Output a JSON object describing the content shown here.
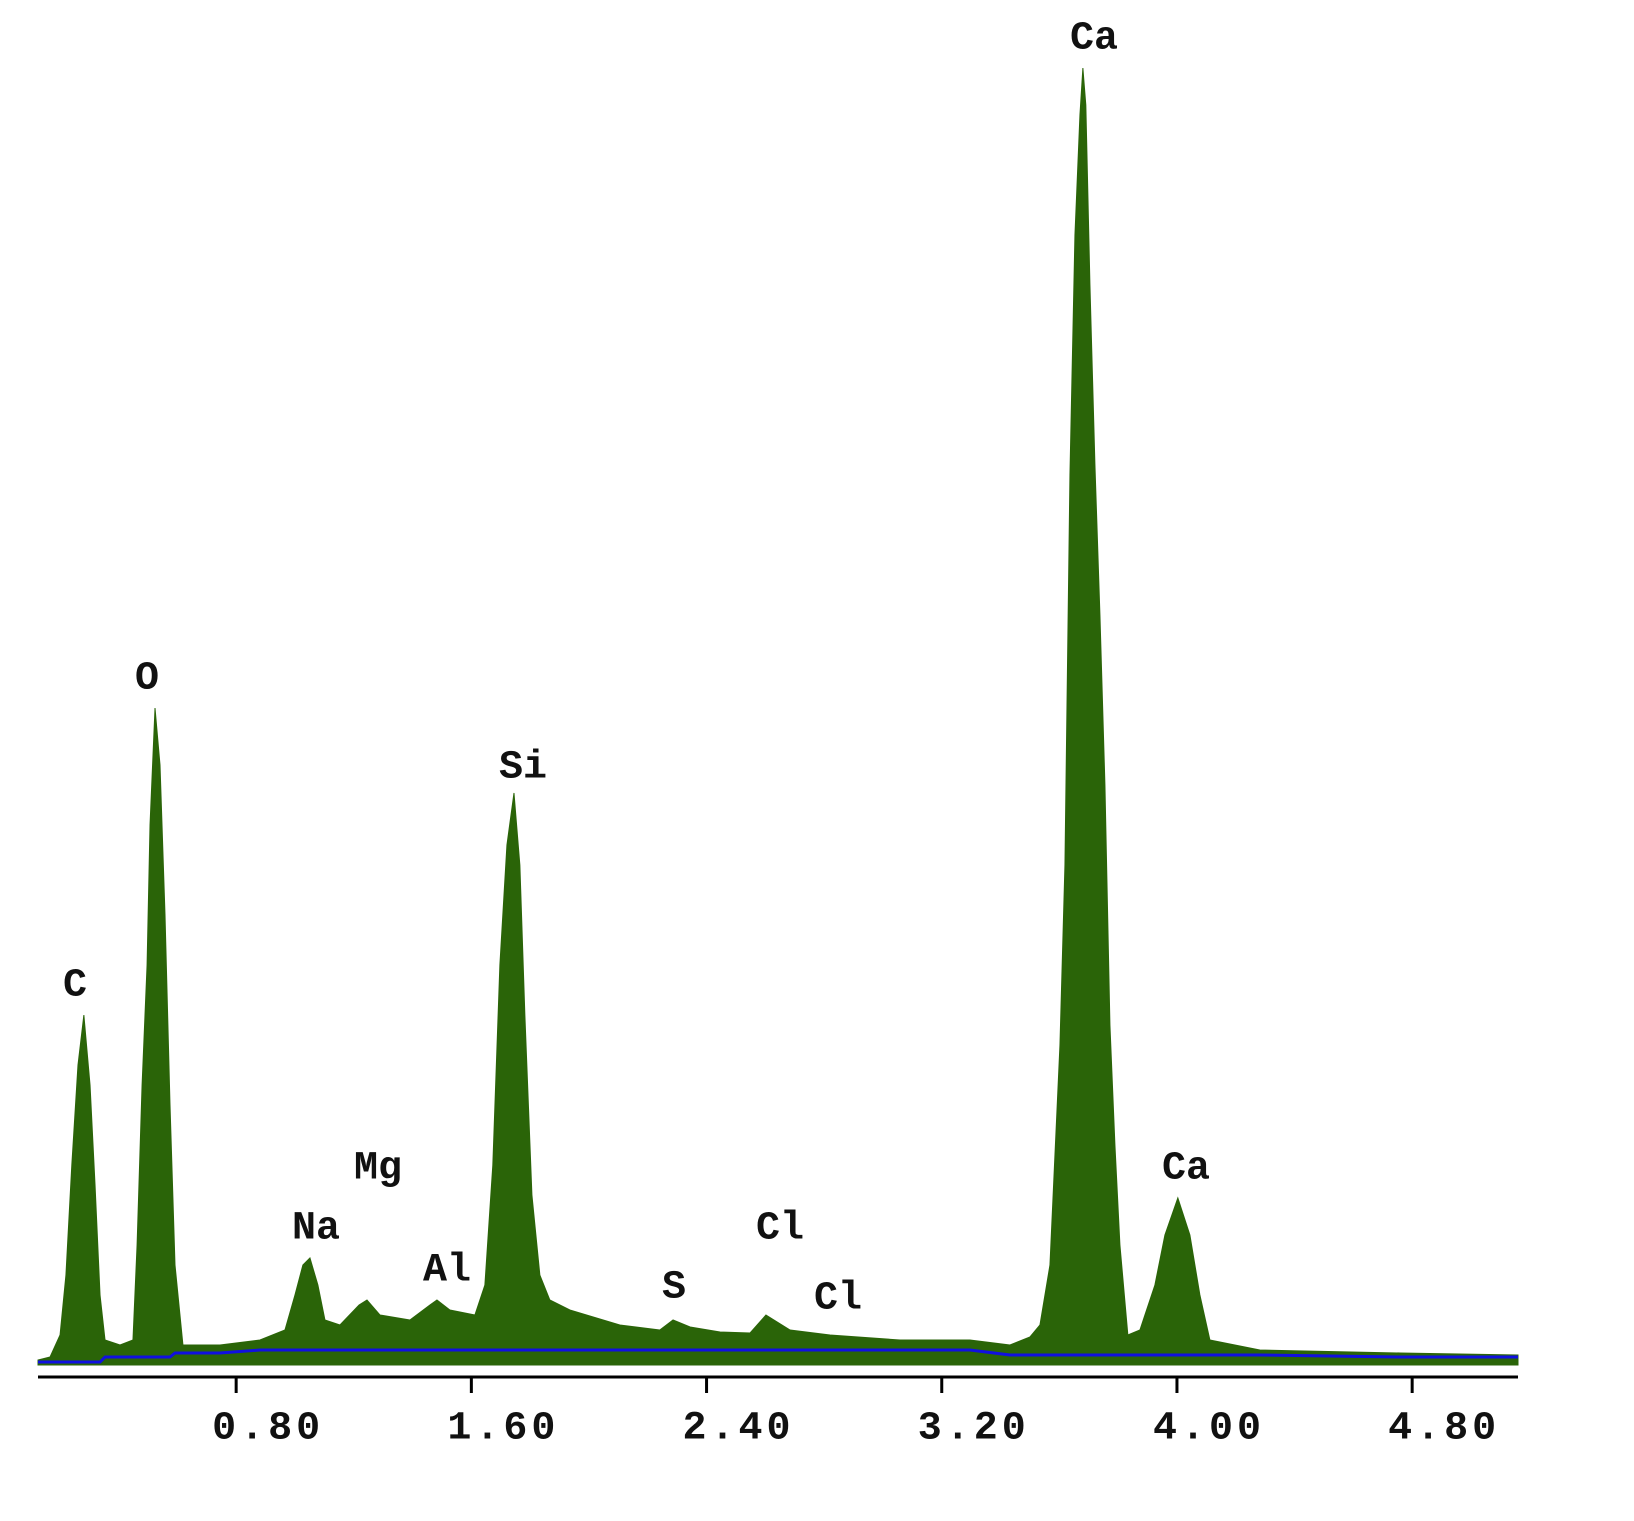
{
  "chart_data": {
    "type": "area",
    "annotations": [
      "C",
      "O",
      "Na",
      "Mg",
      "Al",
      "Si",
      "S",
      "Cl",
      "Cl",
      "Ca",
      "Ca"
    ],
    "x": [
      0.126,
      0.167,
      0.201,
      0.221,
      0.241,
      0.262,
      0.282,
      0.303,
      0.32,
      0.337,
      0.354,
      0.405,
      0.449,
      0.463,
      0.48,
      0.497,
      0.507,
      0.524,
      0.541,
      0.558,
      0.575,
      0.592,
      0.619,
      0.745,
      0.881,
      0.966,
      1.0,
      1.027,
      1.051,
      1.078,
      1.102,
      1.153,
      1.218,
      1.245,
      1.289,
      1.391,
      1.459,
      1.483,
      1.527,
      1.612,
      1.646,
      1.673,
      1.697,
      1.721,
      1.745,
      1.765,
      1.782,
      1.806,
      1.833,
      1.867,
      1.935,
      2.105,
      2.241,
      2.286,
      2.344,
      2.446,
      2.548,
      2.602,
      2.684,
      2.82,
      3.058,
      3.296,
      3.432,
      3.5,
      3.534,
      3.568,
      3.602,
      3.619,
      3.636,
      3.653,
      3.67,
      3.68,
      3.69,
      3.704,
      3.721,
      3.738,
      3.755,
      3.772,
      3.789,
      3.806,
      3.833,
      3.874,
      3.925,
      3.959,
      4.003,
      4.044,
      4.078,
      4.112,
      4.282,
      4.759,
      5.16
    ],
    "series": [
      {
        "color": "#2a6408",
        "values": [
          5,
          8,
          30,
          90,
          200,
          300,
          350,
          280,
          180,
          70,
          25,
          20,
          25,
          120,
          280,
          400,
          540,
          657,
          600,
          450,
          260,
          100,
          20,
          20,
          25,
          35,
          70,
          100,
          107,
          80,
          45,
          40,
          60,
          65,
          50,
          45,
          60,
          65,
          55,
          50,
          80,
          200,
          400,
          520,
          572,
          500,
          350,
          170,
          90,
          65,
          55,
          40,
          35,
          45,
          38,
          33,
          32,
          50,
          35,
          30,
          25,
          25,
          20,
          28,
          40,
          100,
          320,
          500,
          890,
          1130,
          1250,
          1297,
          1260,
          1080,
          900,
          750,
          580,
          340,
          220,
          120,
          30,
          35,
          80,
          130,
          167,
          130,
          70,
          25,
          15,
          12,
          10
        ]
      },
      {
        "color": "#1010e0",
        "values": [
          3,
          3,
          3,
          3,
          3,
          3,
          3,
          3,
          3,
          3,
          8,
          8,
          8,
          8,
          8,
          8,
          8,
          8,
          8,
          8,
          8,
          12,
          12,
          12,
          15,
          15,
          15,
          15,
          15,
          15,
          15,
          15,
          15,
          15,
          15,
          15,
          15,
          15,
          15,
          15,
          15,
          15,
          15,
          15,
          15,
          15,
          15,
          15,
          15,
          15,
          15,
          15,
          15,
          15,
          15,
          15,
          15,
          15,
          15,
          15,
          15,
          15,
          10,
          10,
          10,
          10,
          10,
          10,
          10,
          10,
          10,
          10,
          10,
          10,
          10,
          10,
          10,
          10,
          10,
          10,
          10,
          10,
          10,
          10,
          10,
          10,
          10,
          10,
          10,
          8,
          8
        ]
      }
    ],
    "xlim": [
      0.126,
      5.16
    ],
    "ylim": [
      0,
      1300
    ],
    "xticks": [
      {
        "value": 0.8,
        "label": "0.80"
      },
      {
        "value": 1.6,
        "label": "1.60"
      },
      {
        "value": 2.4,
        "label": "2.40"
      },
      {
        "value": 3.2,
        "label": "3.20"
      },
      {
        "value": 4.0,
        "label": "4.00"
      },
      {
        "value": 4.8,
        "label": "4.80"
      }
    ]
  }
}
